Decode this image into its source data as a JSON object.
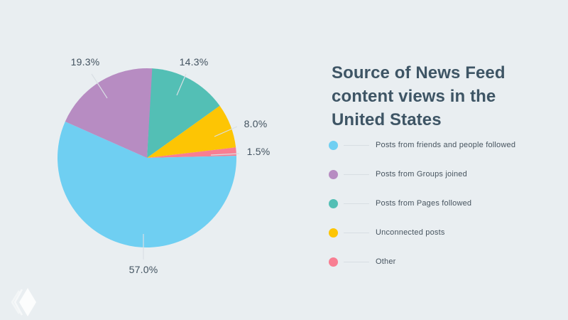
{
  "title": "Source of News Feed content views in the United States",
  "chart_data": {
    "type": "pie",
    "title": "Source of News Feed content views in the United States",
    "legend_position": "right",
    "labels": "percent, outside with leader lines",
    "start_angle_deg": 3,
    "clockwise": true,
    "draw_order": [
      2,
      3,
      4,
      0,
      1
    ],
    "slices": [
      {
        "id": "friends",
        "label": "Posts from friends and people followed",
        "value": 57.0,
        "display_value": "57.0%",
        "color": "#6FCFF2"
      },
      {
        "id": "groups",
        "label": "Posts from Groups joined",
        "value": 19.3,
        "display_value": "19.3%",
        "color": "#B78CC2"
      },
      {
        "id": "pages",
        "label": "Posts from Pages followed",
        "value": 14.3,
        "display_value": "14.3%",
        "color": "#53BFB5"
      },
      {
        "id": "unconnected",
        "label": "Unconnected posts",
        "value": 8.0,
        "display_value": "8.0%",
        "color": "#FDC504"
      },
      {
        "id": "other",
        "label": "Other",
        "value": 1.5,
        "display_value": "1.5%",
        "color": "#F87E92"
      }
    ]
  },
  "colors": {
    "background": "#E9EEF1",
    "title_text": "#3E5565",
    "label_text": "#42525F",
    "leader_line": "#D9DFE4",
    "logo": "#FFFFFF"
  }
}
